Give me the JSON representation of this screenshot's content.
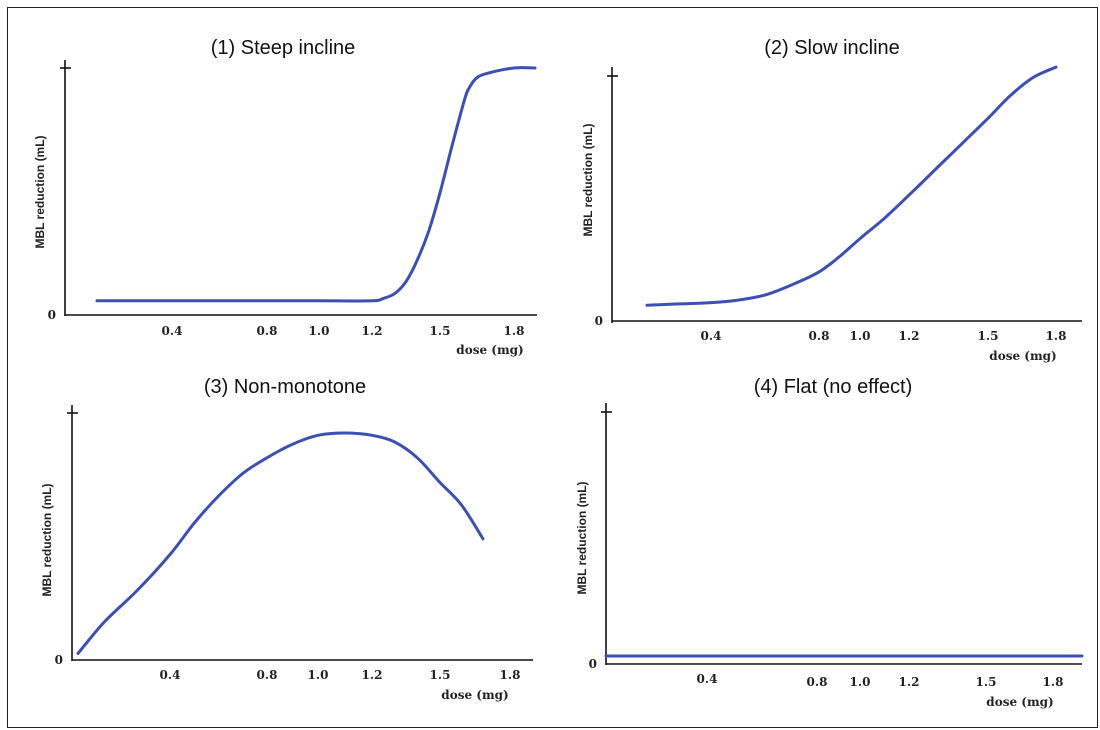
{
  "chart_data": [
    {
      "type": "line",
      "title": "(1) Steep incline",
      "xlabel": "dose (mg)",
      "ylabel": "MBL reduction (mL)",
      "x_ticks": [
        "0.4",
        "0.8",
        "1.0",
        "1.2",
        "1.5",
        "1.8"
      ],
      "y_ticks": [
        "0"
      ],
      "color": "#3b4fb5",
      "series": [
        {
          "x": [
            0.1,
            0.4,
            0.8,
            1.0,
            1.2,
            1.25,
            1.3,
            1.35,
            1.4,
            1.45,
            1.5,
            1.55,
            1.6,
            1.62,
            1.65,
            1.7,
            1.8,
            1.88
          ],
          "y": [
            0.03,
            0.03,
            0.03,
            0.03,
            0.03,
            0.04,
            0.06,
            0.11,
            0.2,
            0.32,
            0.48,
            0.68,
            0.87,
            0.92,
            0.96,
            0.98,
            1.0,
            1.0
          ]
        }
      ]
    },
    {
      "type": "line",
      "title": "(2) Slow incline",
      "xlabel": "dose (mg)",
      "ylabel": "MBL reduction (mL)",
      "x_ticks": [
        "0.4",
        "0.8",
        "1.0",
        "1.2",
        "1.5",
        "1.8"
      ],
      "y_ticks": [
        "0"
      ],
      "color": "#3b4fb5",
      "series": [
        {
          "x": [
            0.2,
            0.3,
            0.4,
            0.5,
            0.6,
            0.7,
            0.8,
            0.9,
            1.0,
            1.1,
            1.2,
            1.3,
            1.4,
            1.5,
            1.6,
            1.7,
            1.8
          ],
          "y": [
            0.05,
            0.055,
            0.06,
            0.07,
            0.09,
            0.13,
            0.18,
            0.24,
            0.31,
            0.39,
            0.48,
            0.58,
            0.68,
            0.78,
            0.87,
            0.94,
            0.98
          ]
        }
      ]
    },
    {
      "type": "line",
      "title": "(3) Non-monotone",
      "xlabel": "dose (mg)",
      "ylabel": "MBL reduction (mL)",
      "x_ticks": [
        "0.4",
        "0.8",
        "1.0",
        "1.2",
        "1.5",
        "1.8"
      ],
      "y_ticks": [
        "0"
      ],
      "color": "#3b4fb5",
      "series": [
        {
          "x": [
            0.12,
            0.2,
            0.3,
            0.4,
            0.5,
            0.6,
            0.7,
            0.8,
            0.9,
            1.0,
            1.1,
            1.2,
            1.3,
            1.4,
            1.5,
            1.6,
            1.7
          ],
          "y": [
            0.02,
            0.16,
            0.3,
            0.46,
            0.6,
            0.72,
            0.82,
            0.89,
            0.95,
            0.99,
            1.0,
            0.99,
            0.96,
            0.89,
            0.78,
            0.68,
            0.53
          ]
        }
      ]
    },
    {
      "type": "line",
      "title": "(4) Flat (no effect)",
      "xlabel": "dose (mg)",
      "ylabel": "MBL reduction (mL)",
      "x_ticks": [
        "0.4",
        "0.8",
        "1.0",
        "1.2",
        "1.5",
        "1.8"
      ],
      "y_ticks": [
        "0"
      ],
      "color": "#3b4fb5",
      "series": [
        {
          "x": [
            0.1,
            0.4,
            0.8,
            1.0,
            1.2,
            1.5,
            1.8,
            1.9
          ],
          "y": [
            0.03,
            0.03,
            0.03,
            0.03,
            0.03,
            0.03,
            0.03,
            0.03
          ]
        }
      ]
    }
  ]
}
